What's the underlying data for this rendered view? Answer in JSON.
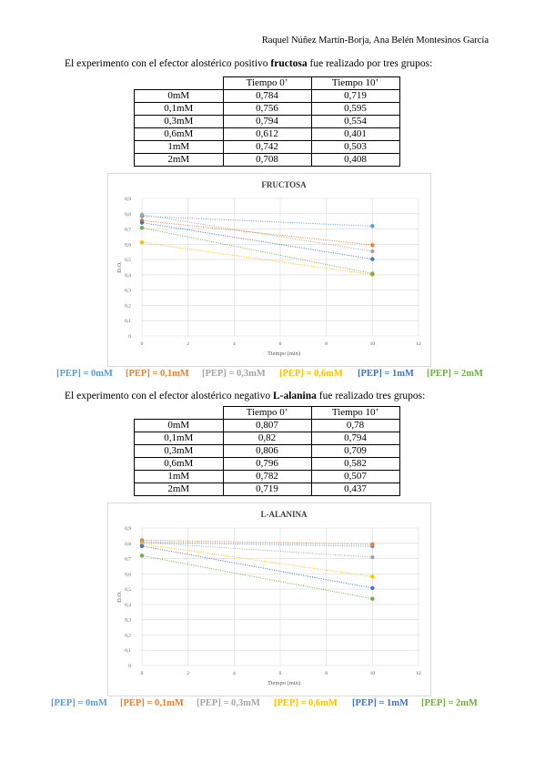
{
  "header": {
    "authors": "Raquel Núñez Martín-Borja, Ana Belén Montesinos García"
  },
  "section1": {
    "text_before": "El experimento con el efector alostérico positivo ",
    "text_bold": "fructosa",
    "text_after": " fue realizado por tres grupos:",
    "table": {
      "headers": [
        "",
        "Tiempo 0’",
        "Tiempo 10’"
      ],
      "rows": [
        [
          "0mM",
          "0,784",
          "0,719"
        ],
        [
          "0,1mM",
          "0,756",
          "0,595"
        ],
        [
          "0,3mM",
          "0,794",
          "0,554"
        ],
        [
          "0,6mM",
          "0,612",
          "0,401"
        ],
        [
          "1mM",
          "0,742",
          "0,503"
        ],
        [
          "2mM",
          "0,708",
          "0,408"
        ]
      ]
    }
  },
  "section2": {
    "text_before": "El experimento con el efector alostérico negativo ",
    "text_bold": "L-alanina",
    "text_after": " fue realizado tres grupos:",
    "table": {
      "headers": [
        "",
        "Tiempo 0’",
        "Tiempo 10’"
      ],
      "rows": [
        [
          "0mM",
          "0,807",
          "0,78"
        ],
        [
          "0,1mM",
          "0,82",
          "0,794"
        ],
        [
          "0,3mM",
          "0,806",
          "0,709"
        ],
        [
          "0,6mM",
          "0,796",
          "0,582"
        ],
        [
          "1mM",
          "0,782",
          "0,507"
        ],
        [
          "2mM",
          "0,719",
          "0,437"
        ]
      ]
    }
  },
  "legend_items": [
    {
      "label": "[PEP] = 0mM",
      "color": "#5b9bd5"
    },
    {
      "label": "[PEP] = 0,1mM",
      "color": "#ed7d31"
    },
    {
      "label": "[PEP] = 0,3mM",
      "color": "#a5a5a5"
    },
    {
      "label": "[PEP] = 0,6mM",
      "color": "#ffc000"
    },
    {
      "label": "[PEP] = 1mM",
      "color": "#4472c4"
    },
    {
      "label": "[PEP] = 2mM",
      "color": "#70ad47"
    }
  ],
  "chart_data": [
    {
      "type": "scatter",
      "title": "FRUCTOSA",
      "xlabel": "Tiempo (min)",
      "ylabel": "D.O.",
      "xlim": [
        0,
        12
      ],
      "ylim": [
        0,
        0.9
      ],
      "xticks": [
        "0",
        "2",
        "4",
        "6",
        "8",
        "10",
        "12"
      ],
      "yticks": [
        "0",
        "0,1",
        "0,2",
        "0,3",
        "0,4",
        "0,5",
        "0,6",
        "0,7",
        "0,8",
        "0,9"
      ],
      "grid": true,
      "trendlines": true,
      "x": [
        0,
        10
      ],
      "series": [
        {
          "name": "[PEP] = 0mM",
          "color": "#5b9bd5",
          "values": [
            0.784,
            0.719
          ]
        },
        {
          "name": "[PEP] = 0,1mM",
          "color": "#ed7d31",
          "values": [
            0.756,
            0.595
          ]
        },
        {
          "name": "[PEP] = 0,3mM",
          "color": "#a5a5a5",
          "values": [
            0.794,
            0.554
          ]
        },
        {
          "name": "[PEP] = 0,6mM",
          "color": "#ffc000",
          "values": [
            0.612,
            0.401
          ]
        },
        {
          "name": "[PEP] = 1mM",
          "color": "#4472c4",
          "values": [
            0.742,
            0.503
          ]
        },
        {
          "name": "[PEP] = 2mM",
          "color": "#70ad47",
          "values": [
            0.708,
            0.408
          ]
        }
      ]
    },
    {
      "type": "scatter",
      "title": "L-ALANINA",
      "xlabel": "Tiempo (min)",
      "ylabel": "D.O.",
      "xlim": [
        0,
        12
      ],
      "ylim": [
        0,
        0.9
      ],
      "xticks": [
        "0",
        "2",
        "4",
        "6",
        "8",
        "10",
        "12"
      ],
      "yticks": [
        "0",
        "0,1",
        "0,2",
        "0,3",
        "0,4",
        "0,5",
        "0,6",
        "0,7",
        "0,8",
        "0,9"
      ],
      "grid": true,
      "trendlines": true,
      "x": [
        0,
        10
      ],
      "series": [
        {
          "name": "[PEP] = 0mM",
          "color": "#5b9bd5",
          "values": [
            0.807,
            0.78
          ]
        },
        {
          "name": "[PEP] = 0,1mM",
          "color": "#ed7d31",
          "values": [
            0.82,
            0.794
          ]
        },
        {
          "name": "[PEP] = 0,3mM",
          "color": "#a5a5a5",
          "values": [
            0.806,
            0.709
          ]
        },
        {
          "name": "[PEP] = 0,6mM",
          "color": "#ffc000",
          "values": [
            0.796,
            0.582
          ]
        },
        {
          "name": "[PEP] = 1mM",
          "color": "#4472c4",
          "values": [
            0.782,
            0.507
          ]
        },
        {
          "name": "[PEP] = 2mM",
          "color": "#70ad47",
          "values": [
            0.719,
            0.437
          ]
        }
      ]
    }
  ]
}
